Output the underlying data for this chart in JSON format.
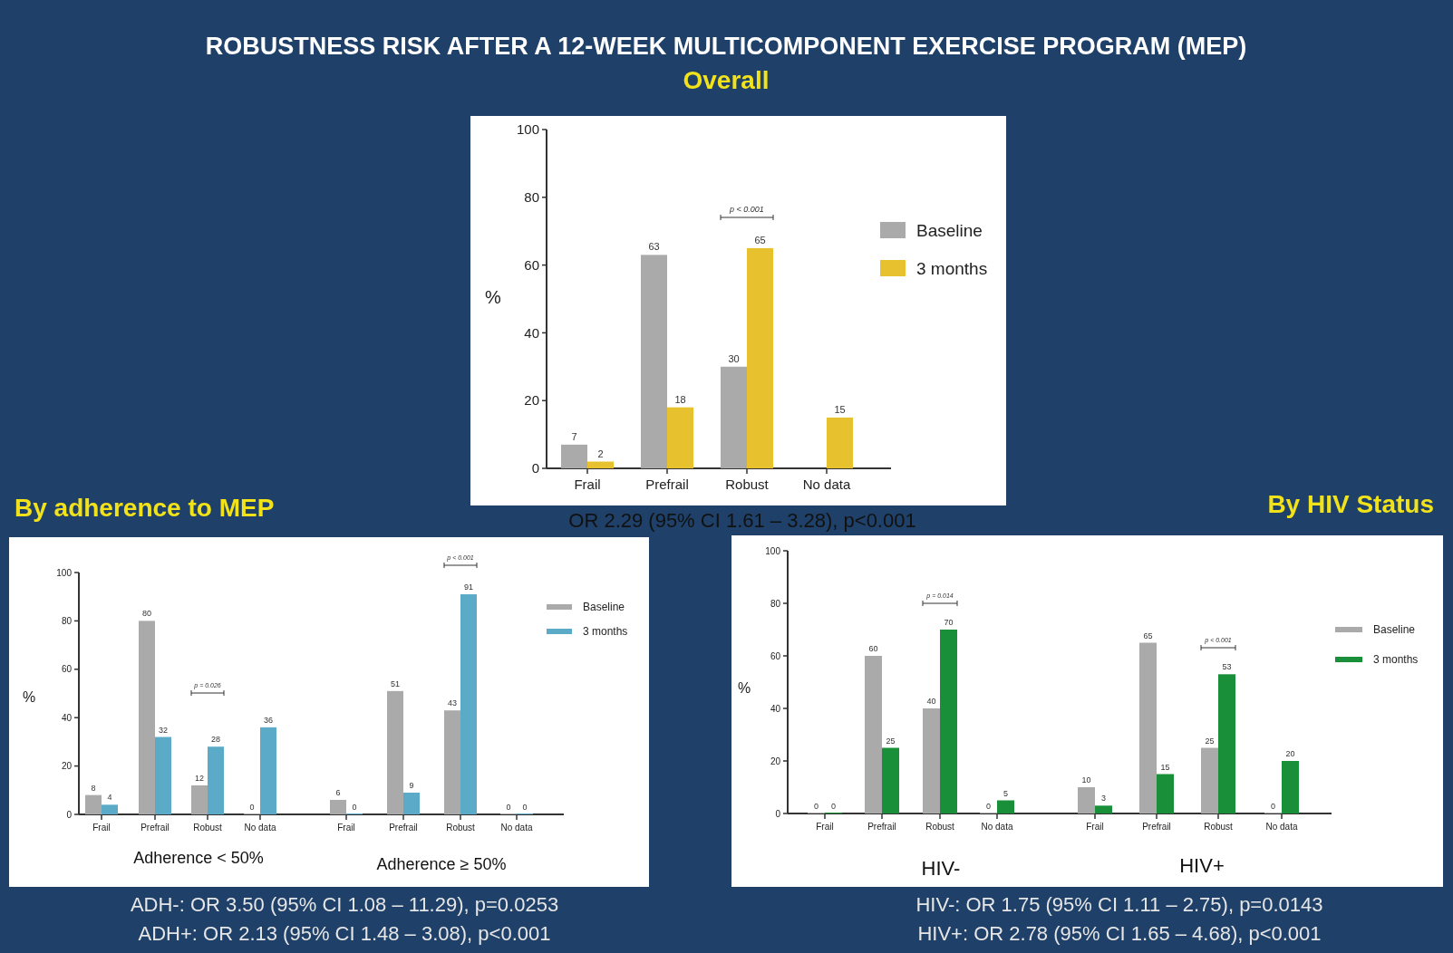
{
  "chart_data": [
    {
      "type": "bar",
      "title": "ROBUSTNESS RISK AFTER A 12-WEEK MULTICOMPONENT EXERCISE PROGRAM (MEP)",
      "subtitle": "Overall",
      "categories": [
        "Frail",
        "Prefrail",
        "Robust",
        "No data"
      ],
      "series": [
        {
          "name": "Baseline",
          "color": "#aaaaaa",
          "values": [
            7,
            63,
            30,
            null
          ]
        },
        {
          "name": "3 months",
          "color": "#e8c22e",
          "values": [
            2,
            18,
            65,
            15
          ]
        }
      ],
      "ylim": [
        0,
        100
      ],
      "yticks": [
        0,
        20,
        40,
        60,
        80,
        100
      ],
      "ylabel": "%",
      "data_labels": true,
      "legend": "right",
      "annotations": [
        "p < 0.001",
        "OR 2.29 (95% CI 1.61 – 3.28), p<0.001"
      ]
    },
    {
      "type": "bar",
      "title": "By adherence to MEP",
      "categories": [
        "Frail",
        "Prefrail",
        "Robust",
        "No data",
        "Frail",
        "Prefrail",
        "Robust",
        "No data"
      ],
      "series": [
        {
          "name": "Baseline",
          "color": "#aaaaaa",
          "values": [
            8,
            80,
            12,
            0,
            6,
            51,
            43,
            0
          ]
        },
        {
          "name": "3 months",
          "color": "#5aaac8",
          "values": [
            4,
            32,
            28,
            36,
            0,
            9,
            91,
            0
          ]
        }
      ],
      "ylim": [
        0,
        100
      ],
      "yticks": [
        0,
        20,
        40,
        60,
        80,
        100
      ],
      "ylabel": "%",
      "data_labels": true,
      "legend": "right",
      "annotations": [
        "p = 0.026",
        "p < 0.001",
        "Adherence < 50%",
        "Adherence ≥ 50%",
        "ADH-: OR 3.50 (95% CI 1.08 – 11.29), p=0.0253",
        "ADH+: OR 2.13 (95% CI 1.48 – 3.08), p<0.001"
      ]
    },
    {
      "type": "bar",
      "title": "By HIV Status",
      "categories": [
        "Frail",
        "Prefrail",
        "Robust",
        "No data",
        "Frail",
        "Prefrail",
        "Robust",
        "No data"
      ],
      "series": [
        {
          "name": "Baseline",
          "color": "#aaaaaa",
          "values": [
            0,
            60,
            40,
            0,
            10,
            65,
            25,
            0
          ]
        },
        {
          "name": "3 months",
          "color": "#1a8f3a",
          "values": [
            0,
            25,
            70,
            5,
            3,
            15,
            53,
            20
          ]
        }
      ],
      "ylim": [
        0,
        100
      ],
      "yticks": [
        0,
        20,
        40,
        60,
        80,
        100
      ],
      "ylabel": "%",
      "data_labels": true,
      "legend": "right",
      "annotations": [
        "p = 0.014",
        "p < 0.001",
        "HIV-",
        "HIV+",
        "HIV-: OR 1.75 (95% CI 1.11 – 2.75), p=0.0143",
        "HIV+: OR 2.78 (95% CI 1.65 – 4.68), p<0.001"
      ]
    }
  ]
}
